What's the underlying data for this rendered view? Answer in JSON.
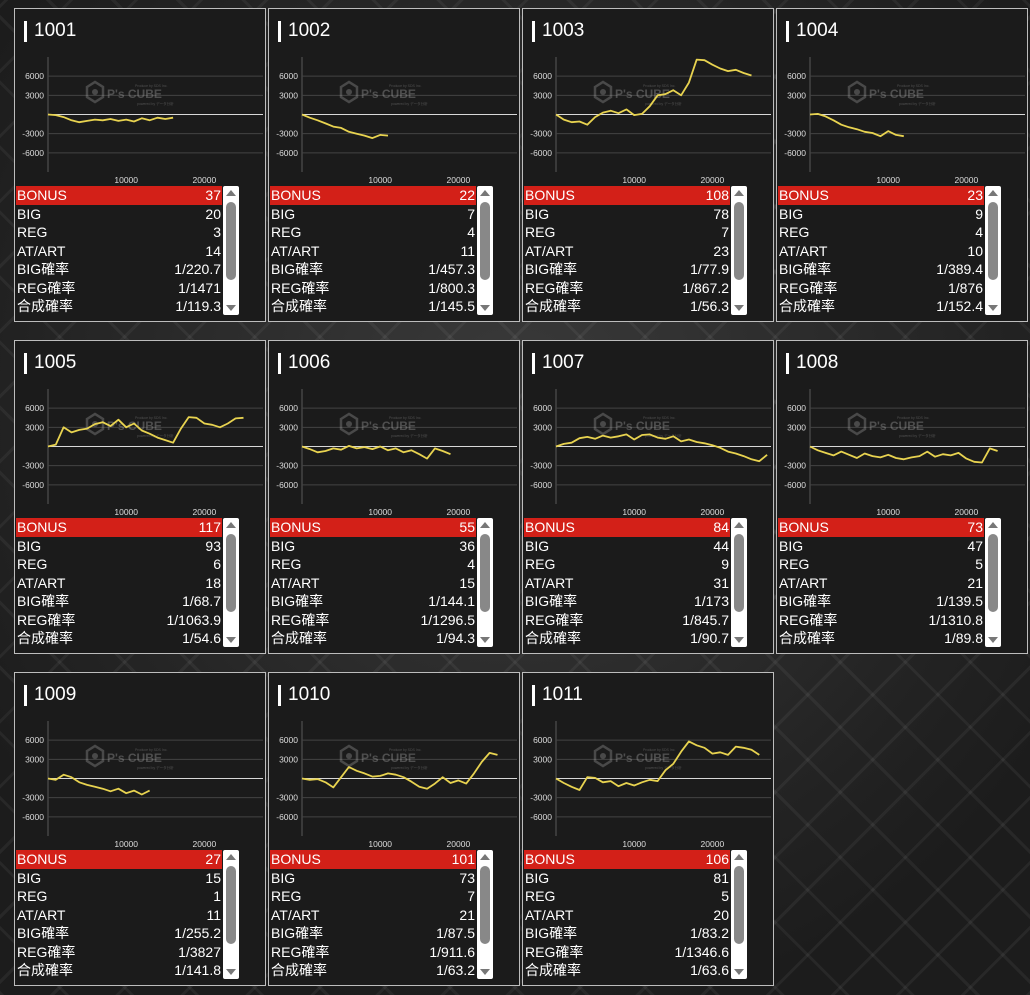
{
  "chart_axis": {
    "y_ticks": [
      6000,
      3000,
      -3000,
      -6000
    ],
    "x_ticks": [
      10000,
      20000
    ],
    "ylim": [
      -9000,
      9000
    ],
    "xlim": [
      0,
      27500
    ]
  },
  "watermark": {
    "brand": "P's CUBE",
    "tagline": "Produce by SDS Inc.",
    "subline": "powered by データ分析"
  },
  "line_color": "#e8d350",
  "bonus_color": "#d32018",
  "labels": {
    "bonus": "BONUS",
    "big": "BIG",
    "reg": "REG",
    "at": "AT/ART",
    "big_rate": "BIG確率",
    "reg_rate": "REG確率",
    "total_rate": "合成確率"
  },
  "machines": [
    {
      "id": "1001",
      "stats": {
        "bonus": "37",
        "big": "20",
        "reg": "3",
        "at": "14",
        "big_rate": "1/220.7",
        "reg_rate": "1/1471",
        "total_rate": "1/119.3"
      },
      "chart_data": {
        "type": "line",
        "x": [
          0,
          1000,
          2000,
          3000,
          4000,
          5000,
          6000,
          7000,
          8000,
          9000,
          10000,
          11000,
          12000,
          13000,
          14000,
          15000,
          16000
        ],
        "y": [
          0,
          -100,
          -400,
          -900,
          -1200,
          -1000,
          -800,
          -900,
          -700,
          -1000,
          -800,
          -1100,
          -600,
          -900,
          -500,
          -700,
          -500
        ]
      }
    },
    {
      "id": "1002",
      "stats": {
        "bonus": "22",
        "big": "7",
        "reg": "4",
        "at": "11",
        "big_rate": "1/457.3",
        "reg_rate": "1/800.3",
        "total_rate": "1/145.5"
      },
      "chart_data": {
        "type": "line",
        "x": [
          0,
          1000,
          2000,
          3000,
          4000,
          5000,
          6000,
          7000,
          8000,
          9000,
          10000,
          11000
        ],
        "y": [
          0,
          -500,
          -900,
          -1400,
          -1900,
          -2100,
          -2700,
          -3000,
          -3300,
          -3700,
          -3200,
          -3300
        ]
      }
    },
    {
      "id": "1003",
      "stats": {
        "bonus": "108",
        "big": "78",
        "reg": "7",
        "at": "23",
        "big_rate": "1/77.9",
        "reg_rate": "1/867.2",
        "total_rate": "1/56.3"
      },
      "chart_data": {
        "type": "line",
        "x": [
          0,
          1000,
          2000,
          3000,
          4000,
          5000,
          6000,
          7000,
          8000,
          9000,
          10000,
          11000,
          12000,
          13000,
          14000,
          15000,
          16000,
          17000,
          18000,
          19000,
          20000,
          21000,
          22000,
          23000,
          24000,
          25000
        ],
        "y": [
          0,
          -800,
          -1200,
          -1100,
          -1600,
          -400,
          300,
          600,
          200,
          800,
          -100,
          100,
          1300,
          3000,
          3200,
          3800,
          3000,
          5000,
          8600,
          8500,
          7800,
          7200,
          6800,
          7000,
          6500,
          6100
        ]
      }
    },
    {
      "id": "1004",
      "stats": {
        "bonus": "23",
        "big": "9",
        "reg": "4",
        "at": "10",
        "big_rate": "1/389.4",
        "reg_rate": "1/876",
        "total_rate": "1/152.4"
      },
      "chart_data": {
        "type": "line",
        "x": [
          0,
          1000,
          2000,
          3000,
          4000,
          5000,
          6000,
          7000,
          8000,
          9000,
          10000,
          11000,
          12000
        ],
        "y": [
          0,
          100,
          -300,
          -900,
          -1600,
          -2000,
          -2300,
          -2700,
          -2900,
          -3400,
          -2600,
          -3200,
          -3400
        ]
      }
    },
    {
      "id": "1005",
      "stats": {
        "bonus": "117",
        "big": "93",
        "reg": "6",
        "at": "18",
        "big_rate": "1/68.7",
        "reg_rate": "1/1063.9",
        "total_rate": "1/54.6"
      },
      "chart_data": {
        "type": "line",
        "x": [
          0,
          1000,
          2000,
          3000,
          4000,
          5000,
          6000,
          7000,
          8000,
          9000,
          10000,
          11000,
          12000,
          13000,
          14000,
          15000,
          16000,
          17000,
          18000,
          19000,
          20000,
          21000,
          22000,
          23000,
          24000,
          25000
        ],
        "y": [
          0,
          300,
          3000,
          2200,
          2600,
          2800,
          3500,
          3800,
          3200,
          4200,
          3000,
          3600,
          2500,
          2000,
          1400,
          1000,
          600,
          2800,
          4600,
          4500,
          3600,
          3400,
          3000,
          3600,
          4400,
          4500
        ]
      }
    },
    {
      "id": "1006",
      "stats": {
        "bonus": "55",
        "big": "36",
        "reg": "4",
        "at": "15",
        "big_rate": "1/144.1",
        "reg_rate": "1/1296.5",
        "total_rate": "1/94.3"
      },
      "chart_data": {
        "type": "line",
        "x": [
          0,
          1000,
          2000,
          3000,
          4000,
          5000,
          6000,
          7000,
          8000,
          9000,
          10000,
          11000,
          12000,
          13000,
          14000,
          15000,
          16000,
          17000,
          18000,
          19000
        ],
        "y": [
          0,
          -400,
          -900,
          -700,
          -300,
          -500,
          100,
          -300,
          -100,
          -400,
          0,
          -600,
          -300,
          -900,
          -600,
          -1200,
          -1900,
          -300,
          -700,
          -1200
        ]
      }
    },
    {
      "id": "1007",
      "stats": {
        "bonus": "84",
        "big": "44",
        "reg": "9",
        "at": "31",
        "big_rate": "1/173",
        "reg_rate": "1/845.7",
        "total_rate": "1/90.7"
      },
      "chart_data": {
        "type": "line",
        "x": [
          0,
          1000,
          2000,
          3000,
          4000,
          5000,
          6000,
          7000,
          8000,
          9000,
          10000,
          11000,
          12000,
          13000,
          14000,
          15000,
          16000,
          17000,
          18000,
          19000,
          20000,
          21000,
          22000,
          23000,
          24000,
          25000,
          26000,
          27000
        ],
        "y": [
          0,
          400,
          600,
          1300,
          1500,
          1200,
          1700,
          1400,
          1600,
          1900,
          1100,
          1800,
          1900,
          1400,
          1200,
          1600,
          800,
          1100,
          700,
          500,
          200,
          -200,
          -800,
          -1100,
          -1500,
          -2000,
          -2300,
          -1300
        ]
      }
    },
    {
      "id": "1008",
      "stats": {
        "bonus": "73",
        "big": "47",
        "reg": "5",
        "at": "21",
        "big_rate": "1/139.5",
        "reg_rate": "1/1310.8",
        "total_rate": "1/89.8"
      },
      "chart_data": {
        "type": "line",
        "x": [
          0,
          1000,
          2000,
          3000,
          4000,
          5000,
          6000,
          7000,
          8000,
          9000,
          10000,
          11000,
          12000,
          13000,
          14000,
          15000,
          16000,
          17000,
          18000,
          19000,
          20000,
          21000,
          22000,
          23000,
          24000
        ],
        "y": [
          0,
          -600,
          -1000,
          -1400,
          -800,
          -1300,
          -1800,
          -1100,
          -1500,
          -1700,
          -1300,
          -1800,
          -2000,
          -1700,
          -1500,
          -800,
          -1600,
          -1200,
          -1400,
          -1000,
          -1900,
          -2400,
          -2500,
          -300,
          -700
        ]
      }
    },
    {
      "id": "1009",
      "stats": {
        "bonus": "27",
        "big": "15",
        "reg": "1",
        "at": "11",
        "big_rate": "1/255.2",
        "reg_rate": "1/3827",
        "total_rate": "1/141.8"
      },
      "chart_data": {
        "type": "line",
        "x": [
          0,
          1000,
          2000,
          3000,
          4000,
          5000,
          6000,
          7000,
          8000,
          9000,
          10000,
          11000,
          12000,
          13000
        ],
        "y": [
          0,
          -200,
          600,
          200,
          -600,
          -1000,
          -1300,
          -1600,
          -2000,
          -1600,
          -2300,
          -1900,
          -2500,
          -1900
        ]
      }
    },
    {
      "id": "1010",
      "stats": {
        "bonus": "101",
        "big": "73",
        "reg": "7",
        "at": "21",
        "big_rate": "1/87.5",
        "reg_rate": "1/911.6",
        "total_rate": "1/63.2"
      },
      "chart_data": {
        "type": "line",
        "x": [
          0,
          1000,
          2000,
          3000,
          4000,
          5000,
          6000,
          7000,
          8000,
          9000,
          10000,
          11000,
          12000,
          13000,
          14000,
          15000,
          16000,
          17000,
          18000,
          19000,
          20000,
          21000,
          22000,
          23000,
          24000,
          25000
        ],
        "y": [
          0,
          -200,
          -100,
          -600,
          -1400,
          200,
          1800,
          1200,
          800,
          300,
          400,
          800,
          600,
          200,
          -500,
          -1300,
          -1600,
          -800,
          200,
          -700,
          -300,
          -800,
          800,
          2600,
          4000,
          3700
        ]
      }
    },
    {
      "id": "1011",
      "stats": {
        "bonus": "106",
        "big": "81",
        "reg": "5",
        "at": "20",
        "big_rate": "1/83.2",
        "reg_rate": "1/1346.6",
        "total_rate": "1/63.6"
      },
      "chart_data": {
        "type": "line",
        "x": [
          0,
          1000,
          2000,
          3000,
          4000,
          5000,
          6000,
          7000,
          8000,
          9000,
          10000,
          11000,
          12000,
          13000,
          14000,
          15000,
          16000,
          17000,
          18000,
          19000,
          20000,
          21000,
          22000,
          23000,
          24000,
          25000,
          26000
        ],
        "y": [
          0,
          -700,
          -1300,
          -1800,
          200,
          100,
          -600,
          -400,
          -1200,
          -700,
          -1100,
          -600,
          -200,
          -400,
          1300,
          2300,
          4200,
          5800,
          5200,
          4800,
          3900,
          4100,
          3700,
          5000,
          4800,
          4500,
          3700
        ]
      }
    }
  ]
}
